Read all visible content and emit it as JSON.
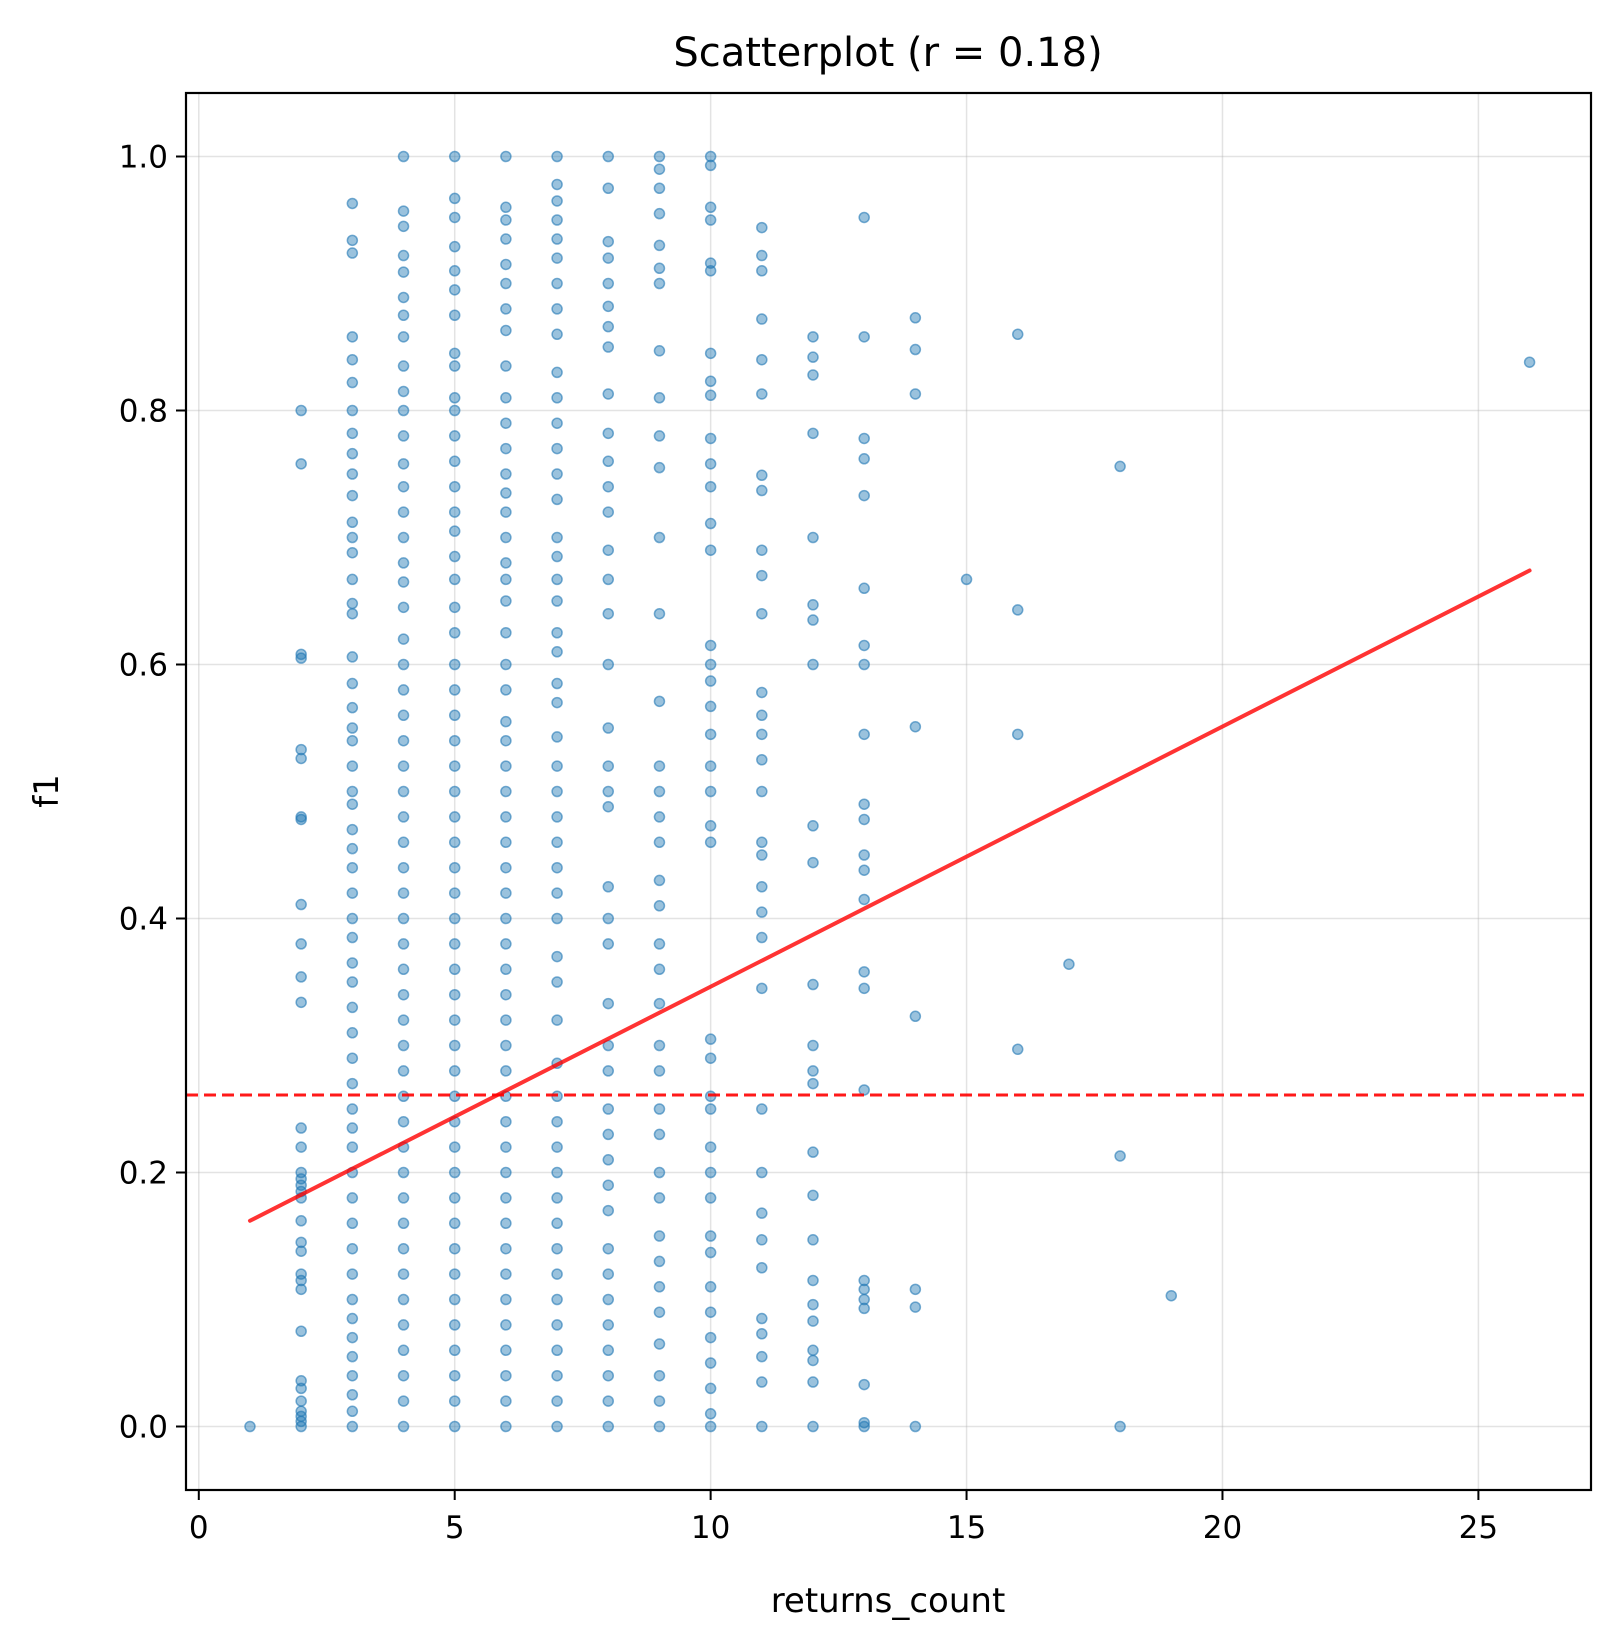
{
  "chart_data": {
    "type": "scatter",
    "title": "Scatterplot (r = 0.18)",
    "xlabel": "returns_count",
    "ylabel": "f1",
    "xlim": [
      -0.25,
      27.2
    ],
    "ylim": [
      -0.05,
      1.05
    ],
    "x_ticks": [
      0,
      5,
      10,
      15,
      20,
      25
    ],
    "y_ticks": [
      0.0,
      0.2,
      0.4,
      0.6,
      0.8,
      1.0
    ],
    "x_tick_labels": [
      "0",
      "5",
      "10",
      "15",
      "20",
      "25"
    ],
    "y_tick_labels": [
      "0.0",
      "0.2",
      "0.4",
      "0.6",
      "0.8",
      "1.0"
    ],
    "grid": true,
    "colors": {
      "points": "#1f77b4",
      "trend_line": "#ff0000",
      "mean_line": "#ff0000"
    },
    "trend_line": {
      "x": [
        1,
        26
      ],
      "y": [
        0.162,
        0.674
      ]
    },
    "mean_line": {
      "y": 0.261
    },
    "points": [
      {
        "x": 1,
        "y": [
          0.0
        ]
      },
      {
        "x": 2,
        "y": [
          0.8,
          0.758,
          0.608,
          0.605,
          0.533,
          0.526,
          0.48,
          0.478,
          0.411,
          0.38,
          0.354,
          0.334,
          0.235,
          0.22,
          0.2,
          0.195,
          0.19,
          0.185,
          0.18,
          0.162,
          0.145,
          0.138,
          0.12,
          0.115,
          0.108,
          0.075,
          0.036,
          0.03,
          0.02,
          0.012,
          0.008,
          0.004,
          0.0
        ]
      },
      {
        "x": 3,
        "y": [
          0.963,
          0.934,
          0.924,
          0.858,
          0.84,
          0.822,
          0.8,
          0.782,
          0.766,
          0.75,
          0.733,
          0.712,
          0.7,
          0.688,
          0.667,
          0.648,
          0.64,
          0.606,
          0.585,
          0.566,
          0.55,
          0.54,
          0.52,
          0.5,
          0.49,
          0.47,
          0.455,
          0.44,
          0.42,
          0.4,
          0.385,
          0.365,
          0.35,
          0.33,
          0.31,
          0.29,
          0.27,
          0.25,
          0.235,
          0.22,
          0.2,
          0.18,
          0.16,
          0.14,
          0.12,
          0.1,
          0.085,
          0.07,
          0.055,
          0.04,
          0.025,
          0.012,
          0.0
        ]
      },
      {
        "x": 4,
        "y": [
          1.0,
          0.957,
          0.945,
          0.922,
          0.909,
          0.889,
          0.875,
          0.858,
          0.835,
          0.815,
          0.8,
          0.78,
          0.758,
          0.74,
          0.72,
          0.7,
          0.68,
          0.665,
          0.645,
          0.62,
          0.6,
          0.58,
          0.56,
          0.54,
          0.52,
          0.5,
          0.48,
          0.46,
          0.44,
          0.42,
          0.4,
          0.38,
          0.36,
          0.34,
          0.32,
          0.3,
          0.28,
          0.26,
          0.24,
          0.22,
          0.2,
          0.18,
          0.16,
          0.14,
          0.12,
          0.1,
          0.08,
          0.06,
          0.04,
          0.02,
          0.0
        ]
      },
      {
        "x": 5,
        "y": [
          1.0,
          0.967,
          0.952,
          0.929,
          0.91,
          0.895,
          0.875,
          0.845,
          0.835,
          0.81,
          0.8,
          0.78,
          0.76,
          0.74,
          0.72,
          0.705,
          0.685,
          0.667,
          0.645,
          0.625,
          0.6,
          0.58,
          0.56,
          0.54,
          0.52,
          0.5,
          0.48,
          0.46,
          0.44,
          0.42,
          0.4,
          0.38,
          0.36,
          0.34,
          0.32,
          0.3,
          0.28,
          0.26,
          0.24,
          0.22,
          0.2,
          0.18,
          0.16,
          0.14,
          0.12,
          0.1,
          0.08,
          0.06,
          0.04,
          0.02,
          0.0
        ]
      },
      {
        "x": 6,
        "y": [
          1.0,
          0.96,
          0.95,
          0.935,
          0.915,
          0.9,
          0.88,
          0.863,
          0.835,
          0.81,
          0.79,
          0.77,
          0.75,
          0.735,
          0.72,
          0.7,
          0.68,
          0.667,
          0.65,
          0.625,
          0.6,
          0.58,
          0.555,
          0.54,
          0.52,
          0.5,
          0.48,
          0.46,
          0.44,
          0.42,
          0.4,
          0.38,
          0.36,
          0.34,
          0.32,
          0.3,
          0.28,
          0.26,
          0.24,
          0.22,
          0.2,
          0.18,
          0.16,
          0.14,
          0.12,
          0.1,
          0.08,
          0.06,
          0.04,
          0.02,
          0.0
        ]
      },
      {
        "x": 7,
        "y": [
          1.0,
          0.978,
          0.965,
          0.95,
          0.935,
          0.92,
          0.9,
          0.88,
          0.86,
          0.83,
          0.81,
          0.79,
          0.77,
          0.75,
          0.73,
          0.7,
          0.685,
          0.667,
          0.65,
          0.625,
          0.61,
          0.585,
          0.57,
          0.543,
          0.52,
          0.5,
          0.48,
          0.46,
          0.44,
          0.42,
          0.4,
          0.37,
          0.35,
          0.32,
          0.286,
          0.26,
          0.24,
          0.22,
          0.2,
          0.18,
          0.16,
          0.14,
          0.12,
          0.1,
          0.08,
          0.06,
          0.04,
          0.02,
          0.0
        ]
      },
      {
        "x": 8,
        "y": [
          1.0,
          0.975,
          0.933,
          0.92,
          0.9,
          0.882,
          0.866,
          0.85,
          0.813,
          0.782,
          0.76,
          0.74,
          0.72,
          0.69,
          0.667,
          0.64,
          0.6,
          0.55,
          0.52,
          0.5,
          0.488,
          0.425,
          0.4,
          0.38,
          0.333,
          0.3,
          0.28,
          0.25,
          0.23,
          0.21,
          0.19,
          0.17,
          0.14,
          0.12,
          0.1,
          0.08,
          0.06,
          0.04,
          0.02,
          0.0
        ]
      },
      {
        "x": 9,
        "y": [
          1.0,
          0.99,
          0.975,
          0.955,
          0.93,
          0.912,
          0.9,
          0.847,
          0.81,
          0.78,
          0.755,
          0.7,
          0.64,
          0.571,
          0.52,
          0.5,
          0.48,
          0.46,
          0.43,
          0.41,
          0.38,
          0.36,
          0.333,
          0.3,
          0.28,
          0.25,
          0.23,
          0.2,
          0.18,
          0.15,
          0.13,
          0.11,
          0.09,
          0.065,
          0.04,
          0.02,
          0.0
        ]
      },
      {
        "x": 10,
        "y": [
          1.0,
          0.993,
          0.96,
          0.95,
          0.916,
          0.91,
          0.845,
          0.823,
          0.812,
          0.778,
          0.758,
          0.74,
          0.711,
          0.69,
          0.615,
          0.6,
          0.587,
          0.567,
          0.545,
          0.52,
          0.5,
          0.473,
          0.46,
          0.305,
          0.29,
          0.26,
          0.25,
          0.22,
          0.2,
          0.18,
          0.15,
          0.137,
          0.11,
          0.09,
          0.07,
          0.05,
          0.03,
          0.01,
          0.0
        ]
      },
      {
        "x": 11,
        "y": [
          0.944,
          0.922,
          0.91,
          0.872,
          0.84,
          0.813,
          0.749,
          0.737,
          0.69,
          0.67,
          0.64,
          0.578,
          0.56,
          0.545,
          0.525,
          0.5,
          0.46,
          0.45,
          0.425,
          0.405,
          0.385,
          0.345,
          0.25,
          0.2,
          0.168,
          0.147,
          0.125,
          0.085,
          0.073,
          0.055,
          0.035,
          0.0
        ]
      },
      {
        "x": 12,
        "y": [
          0.858,
          0.842,
          0.828,
          0.782,
          0.7,
          0.647,
          0.635,
          0.6,
          0.473,
          0.444,
          0.348,
          0.3,
          0.28,
          0.27,
          0.216,
          0.182,
          0.147,
          0.115,
          0.096,
          0.083,
          0.06,
          0.052,
          0.035,
          0.0
        ]
      },
      {
        "x": 13,
        "y": [
          0.952,
          0.858,
          0.778,
          0.762,
          0.733,
          0.66,
          0.615,
          0.6,
          0.545,
          0.49,
          0.478,
          0.45,
          0.438,
          0.415,
          0.358,
          0.345,
          0.265,
          0.115,
          0.108,
          0.1,
          0.093,
          0.033,
          0.003,
          0.0
        ]
      },
      {
        "x": 14,
        "y": [
          0.873,
          0.848,
          0.813,
          0.551,
          0.323,
          0.108,
          0.094,
          0.0
        ]
      },
      {
        "x": 15,
        "y": [
          0.667
        ]
      },
      {
        "x": 16,
        "y": [
          0.86,
          0.643,
          0.545,
          0.297
        ]
      },
      {
        "x": 17,
        "y": [
          0.364
        ]
      },
      {
        "x": 18,
        "y": [
          0.756,
          0.213,
          0.0
        ]
      },
      {
        "x": 19,
        "y": [
          0.103
        ]
      },
      {
        "x": 26,
        "y": [
          0.838
        ]
      }
    ]
  }
}
